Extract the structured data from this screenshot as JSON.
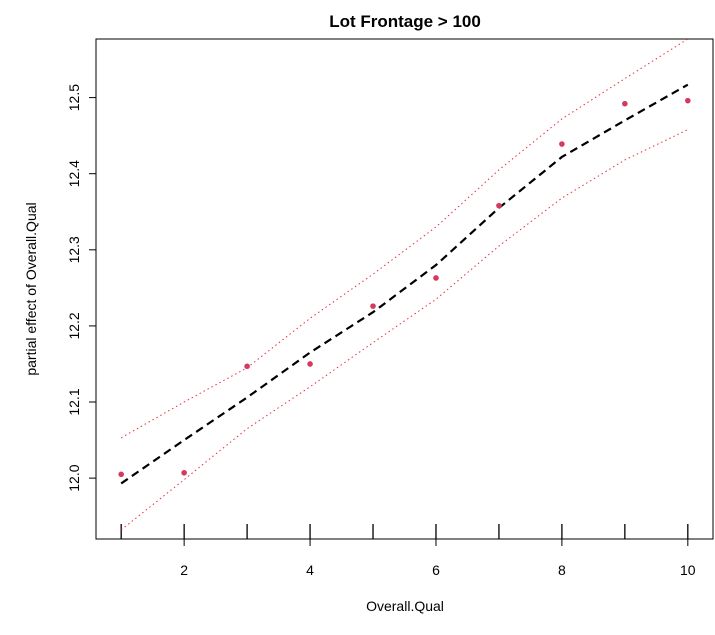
{
  "chart_data": {
    "type": "line",
    "title": "Lot Frontage > 100",
    "xlabel": "Overall.Qual",
    "ylabel": "partial effect of Overall.Qual",
    "xlim": [
      0.6,
      10.4
    ],
    "ylim": [
      11.92,
      12.577
    ],
    "x_ticks": [
      2,
      4,
      6,
      8,
      10
    ],
    "x_tick_labels": [
      "2",
      "4",
      "6",
      "8",
      "10"
    ],
    "y_ticks": [
      12.0,
      12.1,
      12.2,
      12.3,
      12.4,
      12.5
    ],
    "y_tick_labels": [
      "12.0",
      "12.1",
      "12.2",
      "12.3",
      "12.4",
      "12.5"
    ],
    "grid": false,
    "rug_x": [
      1,
      2,
      3,
      4,
      5,
      6,
      7,
      8,
      9,
      10
    ],
    "series": [
      {
        "style": "dashed",
        "color": "#000000",
        "x": [
          1,
          2,
          3,
          4,
          5,
          6,
          7,
          8,
          9,
          10
        ],
        "y": [
          11.993,
          12.05,
          12.106,
          12.165,
          12.218,
          12.28,
          12.355,
          12.422,
          12.47,
          12.517
        ]
      },
      {
        "style": "dotted",
        "color": "#e8303f",
        "x": [
          1,
          2,
          3,
          4,
          5,
          6,
          7,
          8,
          9,
          10
        ],
        "y": [
          12.053,
          12.1,
          12.145,
          12.21,
          12.268,
          12.33,
          12.405,
          12.472,
          12.525,
          12.577
        ]
      },
      {
        "style": "dotted",
        "color": "#e8303f",
        "x": [
          1,
          2,
          3,
          4,
          5,
          6,
          7,
          8,
          9,
          10
        ],
        "y": [
          11.932,
          11.998,
          12.065,
          12.12,
          12.178,
          12.235,
          12.305,
          12.368,
          12.418,
          12.458
        ]
      },
      {
        "style": "points",
        "color": "#d43a5e",
        "x": [
          1,
          2,
          3,
          4,
          5,
          6,
          7,
          8,
          9,
          10
        ],
        "y": [
          12.005,
          12.007,
          12.147,
          12.15,
          12.226,
          12.263,
          12.358,
          12.439,
          12.492,
          12.496
        ]
      }
    ]
  }
}
